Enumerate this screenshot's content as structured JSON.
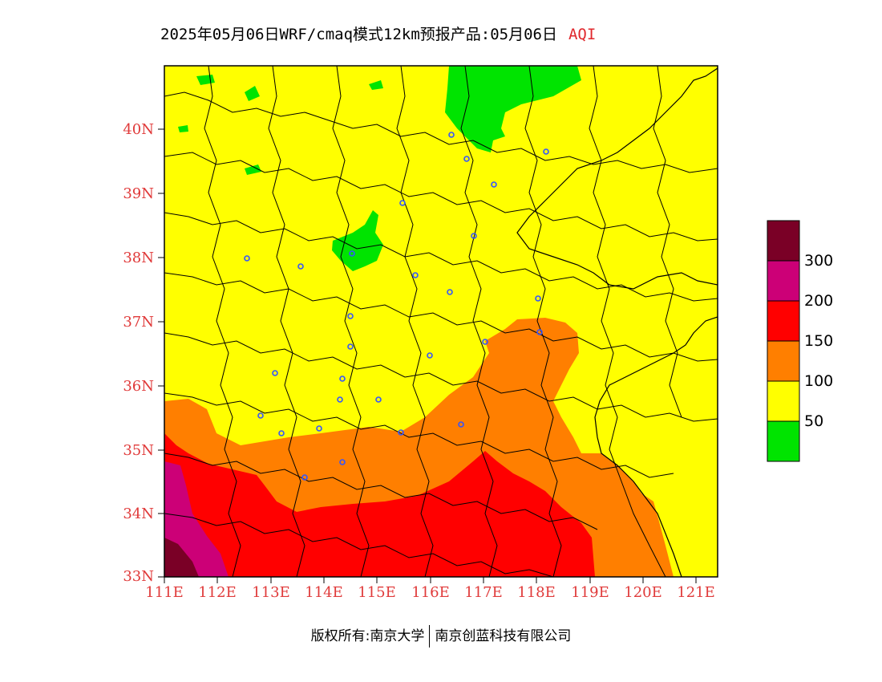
{
  "title": {
    "main": "2025年05月06日WRF/cmaq模式12km预报产品:05月06日",
    "variable": "AQI"
  },
  "axes": {
    "lat_labels": [
      "40N",
      "39N",
      "38N",
      "37N",
      "36N",
      "35N",
      "34N",
      "33N"
    ],
    "lon_labels": [
      "111E",
      "112E",
      "113E",
      "114E",
      "115E",
      "116E",
      "117E",
      "118E",
      "119E",
      "120E",
      "121E"
    ]
  },
  "legend": {
    "levels": [
      {
        "label": "300",
        "color": "#7a0026"
      },
      {
        "label": "200",
        "color": "#cc0077"
      },
      {
        "label": "150",
        "color": "#ff0000"
      },
      {
        "label": "100",
        "color": "#ff7f00"
      },
      {
        "label": "50",
        "color": "#ffff00"
      },
      {
        "label": "",
        "color": "#00e400"
      }
    ]
  },
  "footer": {
    "left": "版权所有:南京大学",
    "right": "南京创蓝科技有限公司"
  },
  "colors": {
    "good": "#00e400",
    "moderate": "#ffff00",
    "usg": "#ff7f00",
    "unhealthy": "#ff0000",
    "very_unhealthy": "#cc0077",
    "hazardous": "#7a0026",
    "axis_label": "#e03a3a",
    "city_marker": "#3355ff"
  }
}
